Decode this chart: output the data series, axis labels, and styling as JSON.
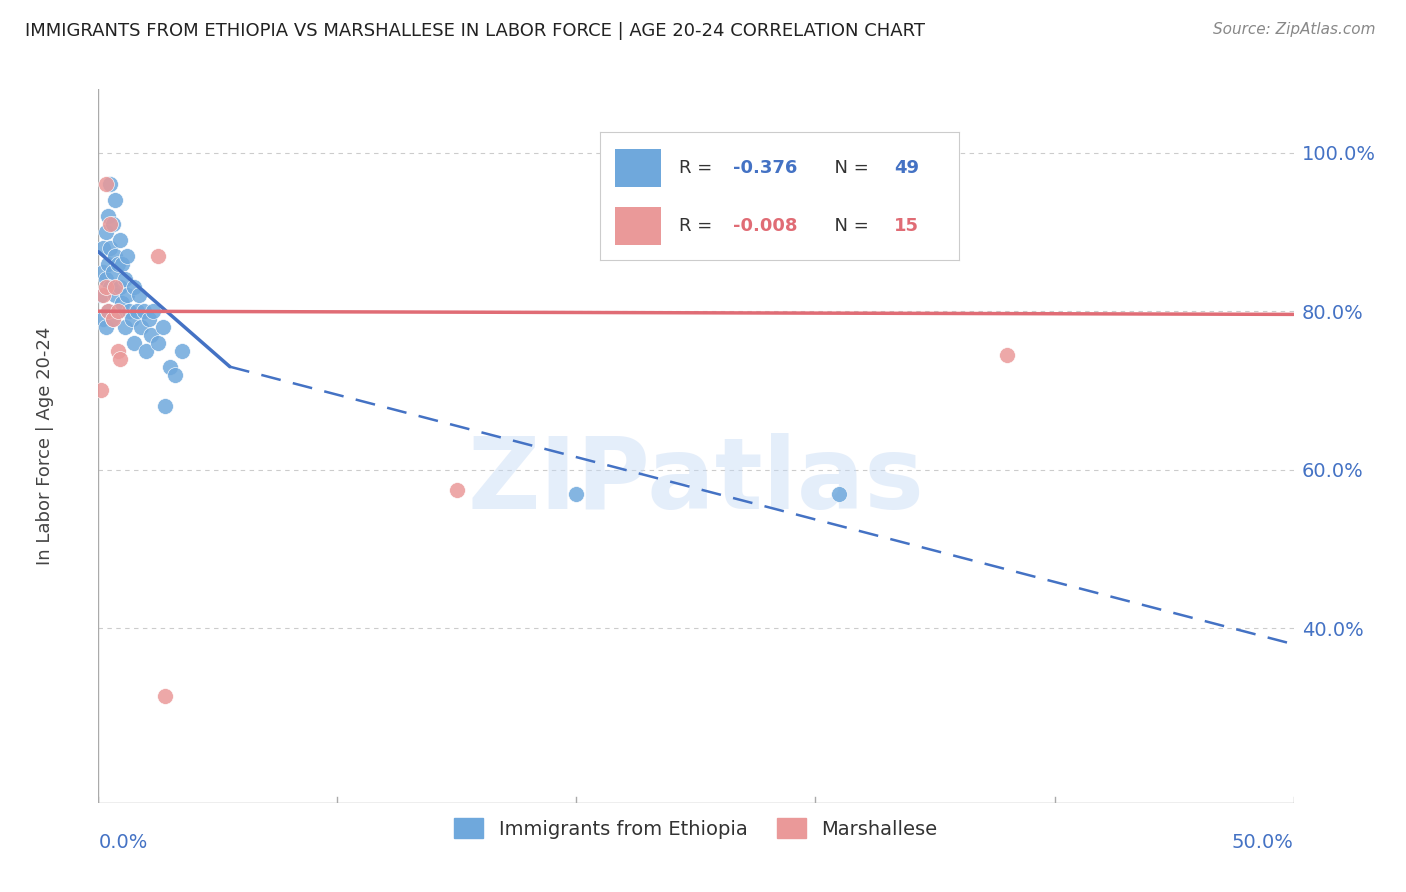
{
  "title": "IMMIGRANTS FROM ETHIOPIA VS MARSHALLESE IN LABOR FORCE | AGE 20-24 CORRELATION CHART",
  "source": "Source: ZipAtlas.com",
  "ylabel": "In Labor Force | Age 20-24",
  "right_yticks": [
    0.4,
    0.6,
    0.8,
    1.0
  ],
  "right_yticklabels": [
    "40.0%",
    "60.0%",
    "80.0%",
    "100.0%"
  ],
  "xlim": [
    0.0,
    0.5
  ],
  "ylim": [
    0.18,
    1.08
  ],
  "legend_ethiopia_R": "-0.376",
  "legend_ethiopia_N": "49",
  "legend_marsh_R": "-0.008",
  "legend_marsh_N": "15",
  "ethiopia_color": "#6fa8dc",
  "marsh_color": "#ea9999",
  "regression_ethiopia_color": "#4472c4",
  "regression_marsh_color": "#e06c75",
  "watermark": "ZIPatlas",
  "ethiopia_points_x": [
    0.001,
    0.002,
    0.002,
    0.002,
    0.003,
    0.003,
    0.003,
    0.004,
    0.004,
    0.004,
    0.005,
    0.005,
    0.005,
    0.006,
    0.006,
    0.006,
    0.007,
    0.007,
    0.007,
    0.008,
    0.008,
    0.009,
    0.009,
    0.01,
    0.01,
    0.011,
    0.011,
    0.012,
    0.012,
    0.013,
    0.014,
    0.015,
    0.015,
    0.016,
    0.017,
    0.018,
    0.019,
    0.02,
    0.021,
    0.022,
    0.023,
    0.025,
    0.027,
    0.028,
    0.03,
    0.032,
    0.035,
    0.2,
    0.31
  ],
  "ethiopia_points_y": [
    0.82,
    0.85,
    0.79,
    0.88,
    0.84,
    0.9,
    0.78,
    0.86,
    0.92,
    0.8,
    0.83,
    0.88,
    0.96,
    0.79,
    0.85,
    0.91,
    0.82,
    0.87,
    0.94,
    0.8,
    0.86,
    0.83,
    0.89,
    0.81,
    0.86,
    0.84,
    0.78,
    0.82,
    0.87,
    0.8,
    0.79,
    0.76,
    0.83,
    0.8,
    0.82,
    0.78,
    0.8,
    0.75,
    0.79,
    0.77,
    0.8,
    0.76,
    0.78,
    0.68,
    0.73,
    0.72,
    0.75,
    0.57,
    0.57
  ],
  "marsh_points_x": [
    0.001,
    0.002,
    0.003,
    0.003,
    0.004,
    0.005,
    0.006,
    0.007,
    0.008,
    0.008,
    0.009,
    0.025,
    0.15,
    0.028,
    0.38
  ],
  "marsh_points_y": [
    0.7,
    0.82,
    0.96,
    0.83,
    0.8,
    0.91,
    0.79,
    0.83,
    0.75,
    0.8,
    0.74,
    0.87,
    0.575,
    0.315,
    0.745
  ],
  "regression_eth_x0": 0.0,
  "regression_eth_y0": 0.875,
  "regression_eth_x1": 0.055,
  "regression_eth_y1": 0.73,
  "regression_eth_xend": 0.5,
  "regression_eth_yend": 0.38,
  "regression_mar_x0": 0.0,
  "regression_mar_y0": 0.8,
  "regression_mar_x1": 0.5,
  "regression_mar_y1": 0.796,
  "axis_color": "#4472c4",
  "grid_color": "#cccccc",
  "title_color": "#222222",
  "source_color": "#888888"
}
